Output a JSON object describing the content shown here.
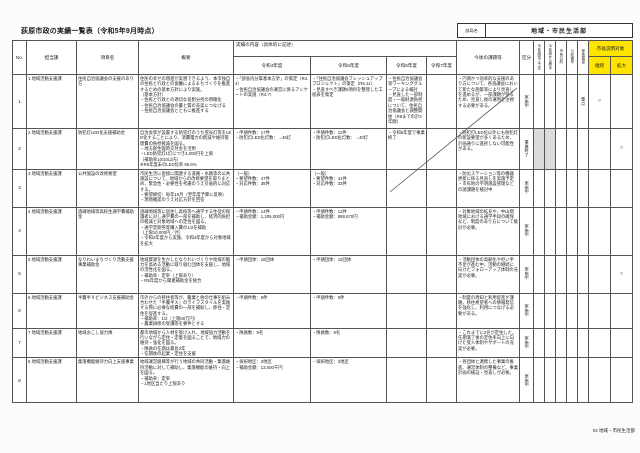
{
  "colors": {
    "highlight_yellow": "#ffe400",
    "shaded_grey": "#dcdcdc",
    "border": "#555555"
  },
  "page": {
    "title": "荻原市政の実績一覧表（令和5年9月時点）",
    "bureau_label": "部局名",
    "bureau_name": "地域・市民生活部",
    "footer": "04 地域・市民生活部"
  },
  "table": {
    "headers": {
      "no": "No.",
      "section": "担当課",
      "item": "項目名",
      "summary": "概要",
      "results_group": "実績の内容（具体的に記述）",
      "years": [
        "令和4年度",
        "令和5年度",
        "令和6年度",
        "令和7年度"
      ],
      "issues": "今後の課題等",
      "category": "区分",
      "flags": [
        "今年度完了予定",
        "今年度から着手",
        "市長公約",
        "公約番号",
        "部長裁量"
      ],
      "mayor_group": "市長説明対象",
      "mayor_sub": [
        "継続",
        "拡大"
      ]
    },
    "rows": [
      {
        "no": "1",
        "section": "1 地域活動支援課",
        "item": "住民自治協議会の支援のあり方",
        "summary": "住民の幸せの増進が実感できるよう、本市独自の住民と行政との協働によるまちづくりを推進するための基本方針により実施。\n（基本方針）\n・住民と行政との適切な役割分担の明確化\n・住民自治協議会の量と質の充実につなげる\n・住民自治協議会とともに推進する",
        "r4": "・「部会内分掌基本方針」の策定（R4.4）\n・住民自治協議会の運営に係るアンケートの実施（R4.7）",
        "r5": "・「住民自治協議会フレッシュアッププロジェクト」の策定（R5.11）\n・見直すべき課題5項目を整理した工程表を策定",
        "r6": "・住民自治協議会等ワーキンググループによる検討\n・見直した一部制度・一般財源負担について、住民自治協議会と調整開始（R8までの計3年間）",
        "r7": "",
        "issues": "・円滑かつ効率的な支援のあり方について、各協議会において新たな施策等により見直しを進めるが、一部課題が残るため、見直し後の運用を注視する必要がある。",
        "category": "実施中",
        "flags": [
          "",
          "",
          "",
          "",
          "重点"
        ],
        "keizoku": "○",
        "kakudai": "",
        "shaded_flags": false
      },
      {
        "no": "2",
        "section": "2 地域活動支援課",
        "item": "防犯灯LED化支援補助金",
        "summary": "自治会等が設置する防犯灯のうち蛍光灯等をLED化することにより、消費電力の削減や維持管理費の負担軽減を図る。\n・地方創生臨時交付金を活用\n・LED防犯灯1灯につき4,000円を上限\n（補助率10/10以内）\n※R5年度末のLED化率 95.6%",
        "r4": "・申請件数：17件\n・防犯灯LED化灯数：→46灯",
        "r5": "・申請件数：11件\n・防犯灯LED化灯数：→40灯",
        "r6": "・令和5年度で事業終了",
        "r7": "",
        "issues": "・防犯灯LED化以外にも防犯灯の新設要望が多くあるため、計画通りに進捗しない可能性がある。",
        "category": "事業終了",
        "flags": [
          "",
          "",
          "",
          "",
          ""
        ],
        "keizoku": "",
        "kakudai": "○",
        "shaded_flags": true
      },
      {
        "no": "3",
        "section": "3 地域活動支援課",
        "item": "公共施設の改修要望",
        "summary": "市民生活に密接に関連する道路・水路等の公共施設について、地域からの改修要望を取りまとめ、緊急性・必要性を考慮のうえ計画的に対応する。\n・要望締切：毎年10月（翌年度予算に反映）\n・現地確認のうえ対応方針を回答",
        "r4": "〔一般〕\n・要望件数：47件\n・対応件数：35件",
        "r5": "〔一般〕\n・要望件数：41件\n・対応件数：33件",
        "r6": "",
        "r7": "",
        "issues": "・防災ステーション等の機器更新に係る見直しを実施予定\n・市有地の不明施設管理などの諸課題を検討中",
        "category": "実施中",
        "flags": [
          "",
          "",
          "",
          "",
          ""
        ],
        "keizoku": "",
        "kakudai": "",
        "shaded_flags": false
      },
      {
        "no": "4",
        "section": "4 地域活動支援課",
        "item": "過疎地域等高校生通学費補助金",
        "summary": "過疎地域等に居住し高校等へ通学する生徒の保護者に対し通学費の一部を補助し、経済的負担の軽減と対象地域への定住を図る。\n・通学定期券等購入費の1/2を補助\n（上限10,000円／月）\n・令和2年度から実施、令和4年度から対象地域を拡大",
        "r4": "・申請件数：14件\n・補助金額：1,206,000円",
        "r5": "・申請件数：13件\n・補助金額：888,670円",
        "r6": "",
        "r7": "",
        "issues": "・対象地域の拡充や、中山間地域における通学手段の確保など、制度のあり方について検討が必要。",
        "category": "実施中",
        "flags": [
          "",
          "",
          "",
          "",
          ""
        ],
        "keizoku": "",
        "kakudai": "",
        "shaded_flags": false
      },
      {
        "no": "5",
        "section": "5 地域活動支援課",
        "item": "なりわいまちづくり活動支援事業補助金",
        "summary": "地域資源を生かしたなりわいづくりや地域の魅力を高める活動に取り組む団体を支援し、地域の活性化を図る。\n・補助率：定率（上限あり）\n・R5年度から関連補助金を統合",
        "r4": "・申請団体：18団体",
        "r5": "・申請団体：15団体",
        "r6": "",
        "r7": "",
        "issues": "・活動団体の高齢化や担い手不足が進む中、活動の継続に向けたフォローアップ体制の充実が必要。",
        "category": "実施中",
        "flags": [
          "",
          "",
          "",
          "",
          ""
        ],
        "keizoku": "",
        "kakudai": "○",
        "shaded_flags": false
      },
      {
        "no": "6",
        "section": "6 地域活動支援課",
        "item": "半農半Ｘビジネス支援補助金",
        "summary": "市外からの移住者等が、農業と他の仕事を組み合わせた「半農半Ｘ」のライフスタイルを実践する際に必要な経費の一部を補助し、移住・定住を促進する。\n・補助率：1/2（上限50万円）\n・農業研修の受講等を要件とする",
        "r4": "・申請件数：6件",
        "r5": "・申請件数：5件",
        "r6": "",
        "r7": "",
        "issues": "・制度の周知と利用促進が課題。移住希望者への情報発信を強化し、利用につなげる必要がある。",
        "category": "実施中",
        "flags": [
          "",
          "",
          "",
          "",
          ""
        ],
        "keizoku": "",
        "kakudai": "",
        "shaded_flags": false
      },
      {
        "no": "7",
        "section": "7 地域活動支援課",
        "item": "地域おこし協力隊",
        "summary": "都市地域から人材を受け入れ、地域協力活動を行いながら定住・定着を図ることで、地域力の維持・強化を図る。\n・隊員の任期は最長3年\n・任期後の起業・定住を支援",
        "r4": "・隊員数：9名",
        "r5": "・隊員数：8名",
        "r6": "",
        "r7": "",
        "issues": "・これまでに2名が定住した。任期満了後の定住率向上に向けた受入体制やサポートの充実が必要。",
        "category": "実施中",
        "flags": [
          "",
          "",
          "",
          "",
          ""
        ],
        "keizoku": "",
        "kakudai": "",
        "shaded_flags": false
      },
      {
        "no": "8",
        "section": "8 地域活動支援課",
        "item": "集落機能維持力向上支援事業",
        "summary": "地域運営組織等が行う地域の共同活動・集落維持活動に対して補助し、集落機能の維持・向上を図る。\n・補助率：定率\n・1地区当たり上限あり",
        "r4": "・採択地区：3地区\n・補助金額：13,000千円",
        "r5": "・採択地区：3地区",
        "r6": "",
        "r7": "",
        "issues": "・各団体と連携した事業の推進、運営体制の整備など、事業計画の検証・見直しが必要。",
        "category": "実施中",
        "flags": [
          "",
          "",
          "",
          "",
          ""
        ],
        "keizoku": "",
        "kakudai": "",
        "shaded_flags": false
      }
    ]
  }
}
